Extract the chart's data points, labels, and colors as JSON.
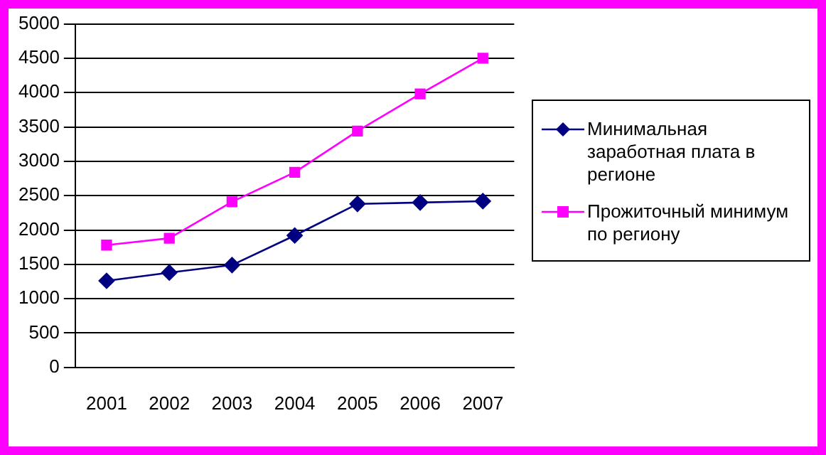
{
  "chart_data": {
    "type": "line",
    "categories": [
      "2001",
      "2002",
      "2003",
      "2004",
      "2005",
      "2006",
      "2007"
    ],
    "series": [
      {
        "name": "Минимальная заработная плата в регионе",
        "color": "#000080",
        "marker": "diamond",
        "values": [
          1260,
          1380,
          1490,
          1920,
          2380,
          2400,
          2420
        ]
      },
      {
        "name": "Прожиточный минимум по региону",
        "color": "#ff00ff",
        "marker": "square",
        "values": [
          1780,
          1880,
          2410,
          2840,
          3440,
          3980,
          4500
        ]
      }
    ],
    "ylim": [
      0,
      5000
    ],
    "yticks": [
      0,
      500,
      1000,
      1500,
      2000,
      2500,
      3000,
      3500,
      4000,
      4500,
      5000
    ],
    "grid": "y",
    "legend": "right",
    "line_style": "solid"
  }
}
